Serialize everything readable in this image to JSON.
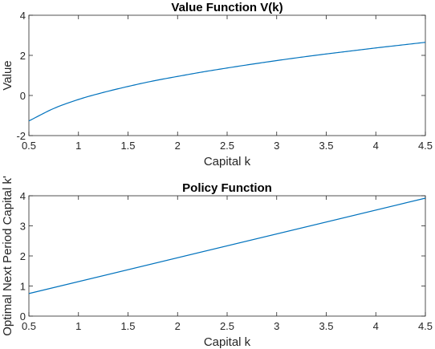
{
  "chart_data": [
    {
      "type": "line",
      "title": "Value Function V(k)",
      "xlabel": "Capital k",
      "ylabel": "Value",
      "xlim": [
        0.5,
        4.5
      ],
      "ylim": [
        -2,
        4
      ],
      "xticks": [
        "0.5",
        "1",
        "1.5",
        "2",
        "2.5",
        "3",
        "3.5",
        "4",
        "4.5"
      ],
      "yticks": [
        "-2",
        "0",
        "2",
        "4"
      ],
      "grid": false,
      "series": [
        {
          "color": "#0072BD",
          "x": [
            0.5,
            0.75,
            1.0,
            1.25,
            1.5,
            1.75,
            2.0,
            2.25,
            2.5,
            2.75,
            3.0,
            3.25,
            3.5,
            3.75,
            4.0,
            4.25,
            4.5
          ],
          "y": [
            -1.27,
            -0.65,
            -0.2,
            0.15,
            0.45,
            0.72,
            0.95,
            1.17,
            1.37,
            1.56,
            1.74,
            1.91,
            2.07,
            2.22,
            2.37,
            2.51,
            2.65
          ]
        }
      ]
    },
    {
      "type": "line",
      "title": "Policy Function",
      "xlabel": "Capital k",
      "ylabel": "Optimal Next Period Capital k'",
      "xlim": [
        0.5,
        4.5
      ],
      "ylim": [
        0,
        4
      ],
      "xticks": [
        "0.5",
        "1",
        "1.5",
        "2",
        "2.5",
        "3",
        "3.5",
        "4",
        "4.5"
      ],
      "yticks": [
        "0",
        "1",
        "2",
        "3",
        "4"
      ],
      "grid": false,
      "series": [
        {
          "color": "#0072BD",
          "x": [
            0.5,
            4.5
          ],
          "y": [
            0.75,
            3.92
          ]
        }
      ]
    }
  ]
}
